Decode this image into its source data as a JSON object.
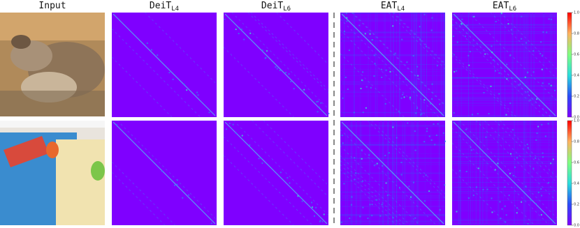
{
  "headers": [
    {
      "base": "Input"
    },
    {
      "base": "DeiT",
      "sub": "L4"
    },
    {
      "base": "DeiT",
      "sub": "L6"
    },
    {
      "base": "EAT",
      "sub": "L4"
    },
    {
      "base": "EAT",
      "sub": "L6"
    }
  ],
  "colorbars": [
    {
      "lim": [
        0,
        1
      ],
      "ticks": [
        {
          "value": 0,
          "label": "0.0"
        },
        0.2,
        0.4,
        0.6,
        0.8,
        {
          "value": 1,
          "label": "1.0"
        }
      ]
    },
    {
      "lim": [
        0,
        1
      ],
      "ticks": [
        {
          "value": 0,
          "label": "0.0"
        },
        0.2,
        0.4,
        0.6,
        0.8,
        {
          "value": 1,
          "label": "1.0"
        }
      ]
    }
  ]
}
